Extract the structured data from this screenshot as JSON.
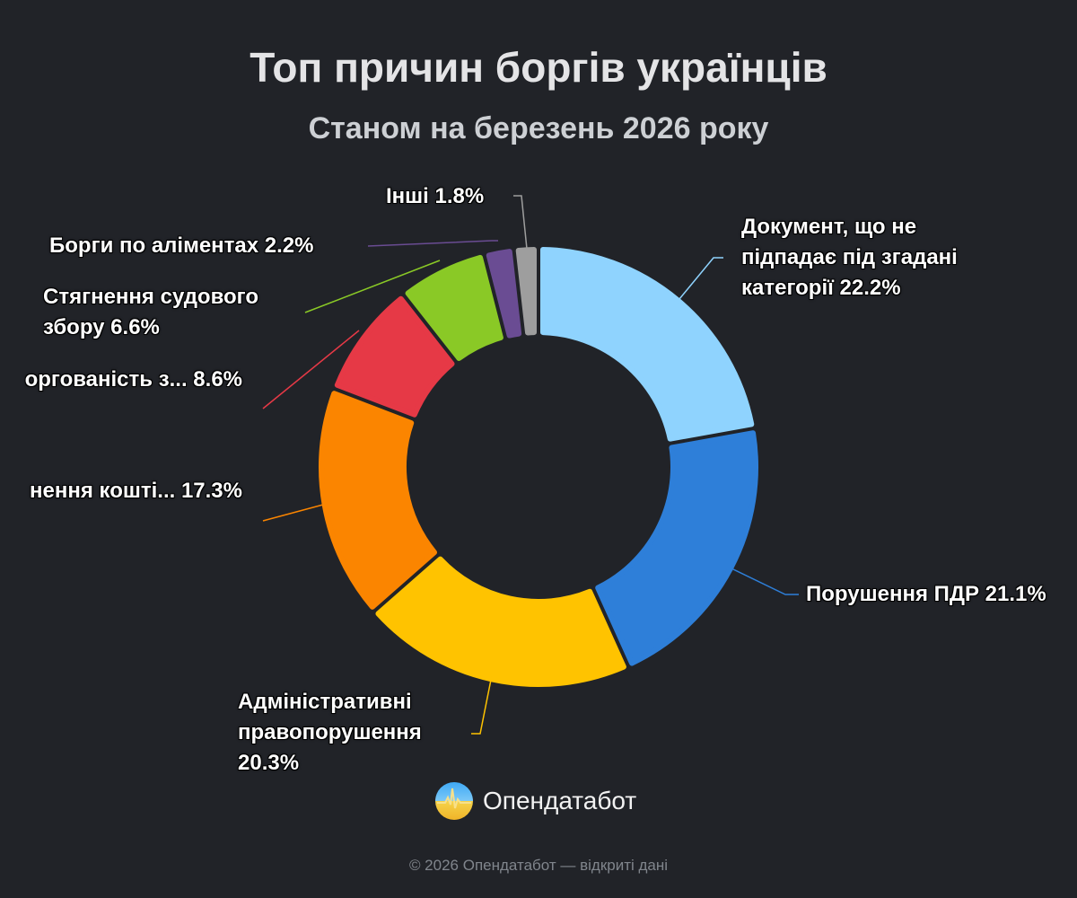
{
  "chart_data": {
    "type": "pie",
    "variant": "donut",
    "title": "Топ причин боргів українців",
    "subtitle": "Станом на березень 2026 року",
    "slices": [
      {
        "label": "Документ, що не підпадає під згадані категорії",
        "display": [
          "Документ, що не",
          "підпадає під згадані",
          "категорії 22.2%"
        ],
        "value": 22.2,
        "color": "#8fd3fe"
      },
      {
        "label": "Порушення ПДР",
        "display": [
          "Порушення ПДР 21.1%"
        ],
        "value": 21.1,
        "color": "#2e7fd9"
      },
      {
        "label": "Адміністративні правопорушення",
        "display": [
          "Адміністративні",
          "правопорушення",
          "20.3%"
        ],
        "value": 20.3,
        "color": "#ffc300"
      },
      {
        "label": "...нення кошті...",
        "display": [
          "нення кошті... 17.3%"
        ],
        "value": 17.3,
        "color": "#fb8500"
      },
      {
        "label": "...оргованість з...",
        "display": [
          "оргованість з... 8.6%"
        ],
        "value": 8.6,
        "color": "#e63946"
      },
      {
        "label": "Стягнення судового збору",
        "display": [
          "Стягнення судового",
          "збору 6.6%"
        ],
        "value": 6.6,
        "color": "#8ac926"
      },
      {
        "label": "Борги по аліментах",
        "display": [
          "Борги по аліментах 2.2%"
        ],
        "value": 2.2,
        "color": "#6a4c93"
      },
      {
        "label": "Інші",
        "display": [
          "Інші 1.8%"
        ],
        "value": 1.8,
        "color": "#9e9e9e"
      }
    ],
    "start": "top",
    "direction": "clockwise",
    "legend": "none"
  },
  "brand": {
    "name": "Опендатабот",
    "logo_icon": "opendatabot-logo-icon"
  },
  "footer": "© 2026 Опендатабот — відкриті дані"
}
